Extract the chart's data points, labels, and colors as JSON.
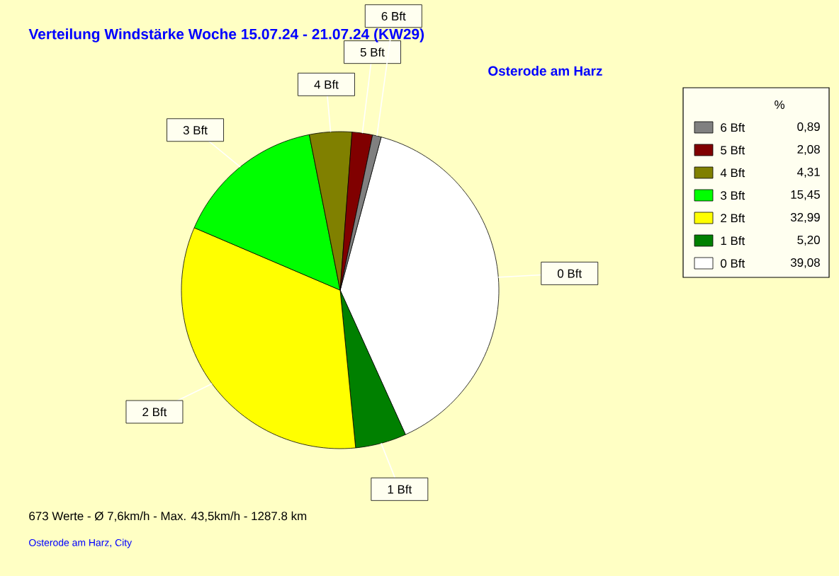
{
  "chart_data": {
    "type": "pie",
    "title": "Verteilung Windstärke  Woche 15.07.24 - 21.07.24 (KW29)",
    "subtitle": "Osterode am Harz",
    "legend_title": "%",
    "categories": [
      "0 Bft",
      "1 Bft",
      "2 Bft",
      "3 Bft",
      "4 Bft",
      "5 Bft",
      "6 Bft"
    ],
    "values": [
      39.08,
      5.2,
      32.99,
      15.45,
      4.31,
      2.08,
      0.89
    ],
    "value_labels": [
      "39,08",
      "5,20",
      "32,99",
      "15,45",
      "4,31",
      "2,08",
      "0,89"
    ],
    "colors": [
      "#ffffff",
      "#008000",
      "#ffff00",
      "#00ff00",
      "#808000",
      "#800000",
      "#808080"
    ],
    "legend": "top right",
    "annotations": [
      "673 Werte   -   Ø 7,6km/h  -  Max. 43,5km/h   -   1287.8 km",
      "Osterode am Harz, City"
    ]
  }
}
